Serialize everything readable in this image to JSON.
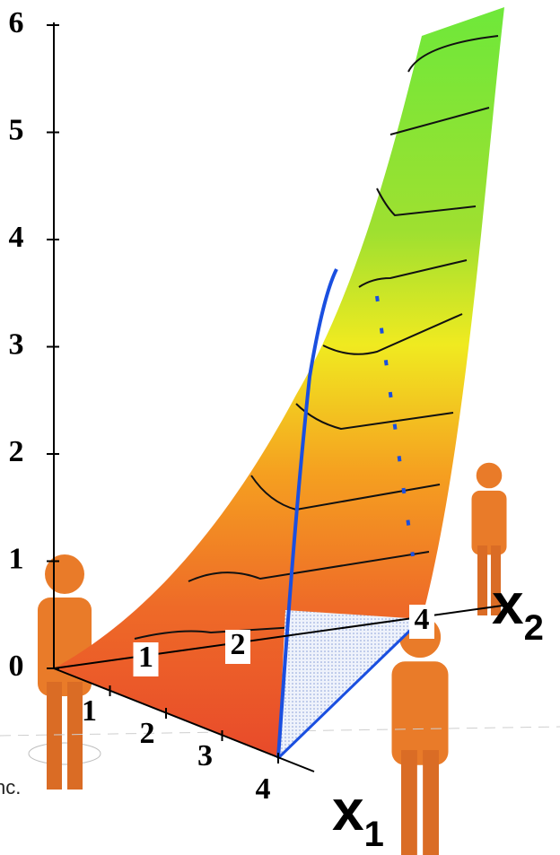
{
  "chart_data": {
    "type": "surface3d",
    "zticks": [
      0,
      1,
      2,
      3,
      4,
      5,
      6
    ],
    "x1ticks": [
      1,
      2,
      3,
      4
    ],
    "x2ticks": [
      1,
      2,
      4
    ],
    "x1_label": "x",
    "x1_subscript": "1",
    "x2_label": "x",
    "x2_subscript": "2",
    "footer": "nc."
  }
}
